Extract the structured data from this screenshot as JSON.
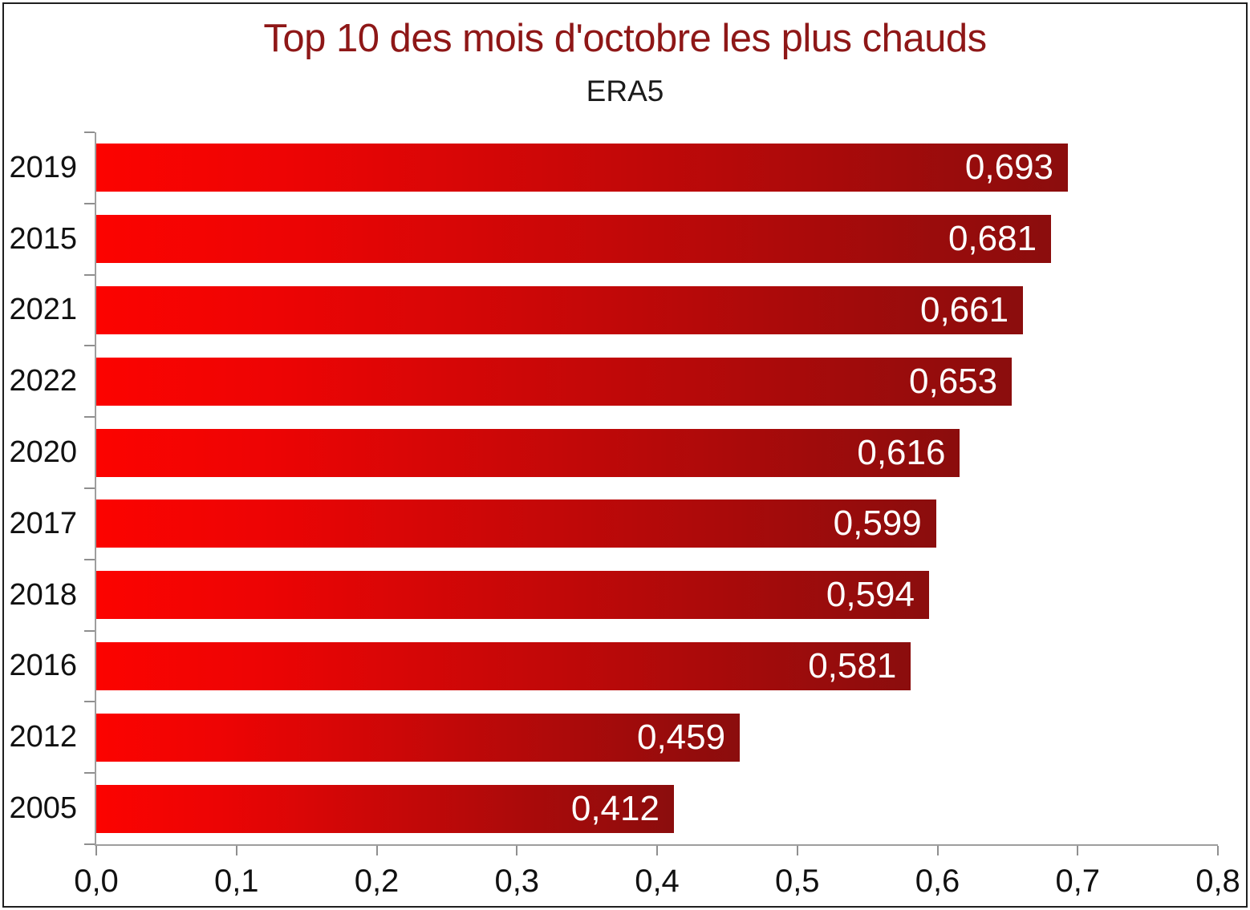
{
  "header": {
    "title": "Top 10 des mois d'octobre les plus chauds",
    "subtitle": "ERA5"
  },
  "colors": {
    "title": "#8e1717",
    "subtitle": "#1b1b1b",
    "bar_gradient_start": "#fc0300",
    "bar_gradient_mid": "#ed0404",
    "bar_gradient_end": "#8b0d0d",
    "value_label": "#ffffff",
    "axis_line": "#9e9e9e",
    "tick": "#8f8f8f",
    "axis_label": "#111111"
  },
  "chart_data": {
    "type": "bar",
    "orientation": "horizontal",
    "title": "Top 10 des mois d'octobre les plus chauds",
    "subtitle": "ERA5",
    "categories": [
      "2019",
      "2015",
      "2021",
      "2022",
      "2020",
      "2017",
      "2018",
      "2016",
      "2012",
      "2005"
    ],
    "values": [
      0.693,
      0.681,
      0.661,
      0.653,
      0.616,
      0.599,
      0.594,
      0.581,
      0.459,
      0.412
    ],
    "value_labels": [
      "0,693",
      "0,681",
      "0,661",
      "0,653",
      "0,616",
      "0,599",
      "0,594",
      "0,581",
      "0,459",
      "0,412"
    ],
    "xlabel": "",
    "ylabel": "",
    "xlim": [
      0,
      0.8
    ],
    "x_ticks": [
      0.0,
      0.1,
      0.2,
      0.3,
      0.4,
      0.5,
      0.6,
      0.7,
      0.8
    ],
    "x_tick_labels": [
      "0,0",
      "0,1",
      "0,2",
      "0,3",
      "0,4",
      "0,5",
      "0,6",
      "0,7",
      "0,8"
    ],
    "grid": false,
    "legend": false
  }
}
